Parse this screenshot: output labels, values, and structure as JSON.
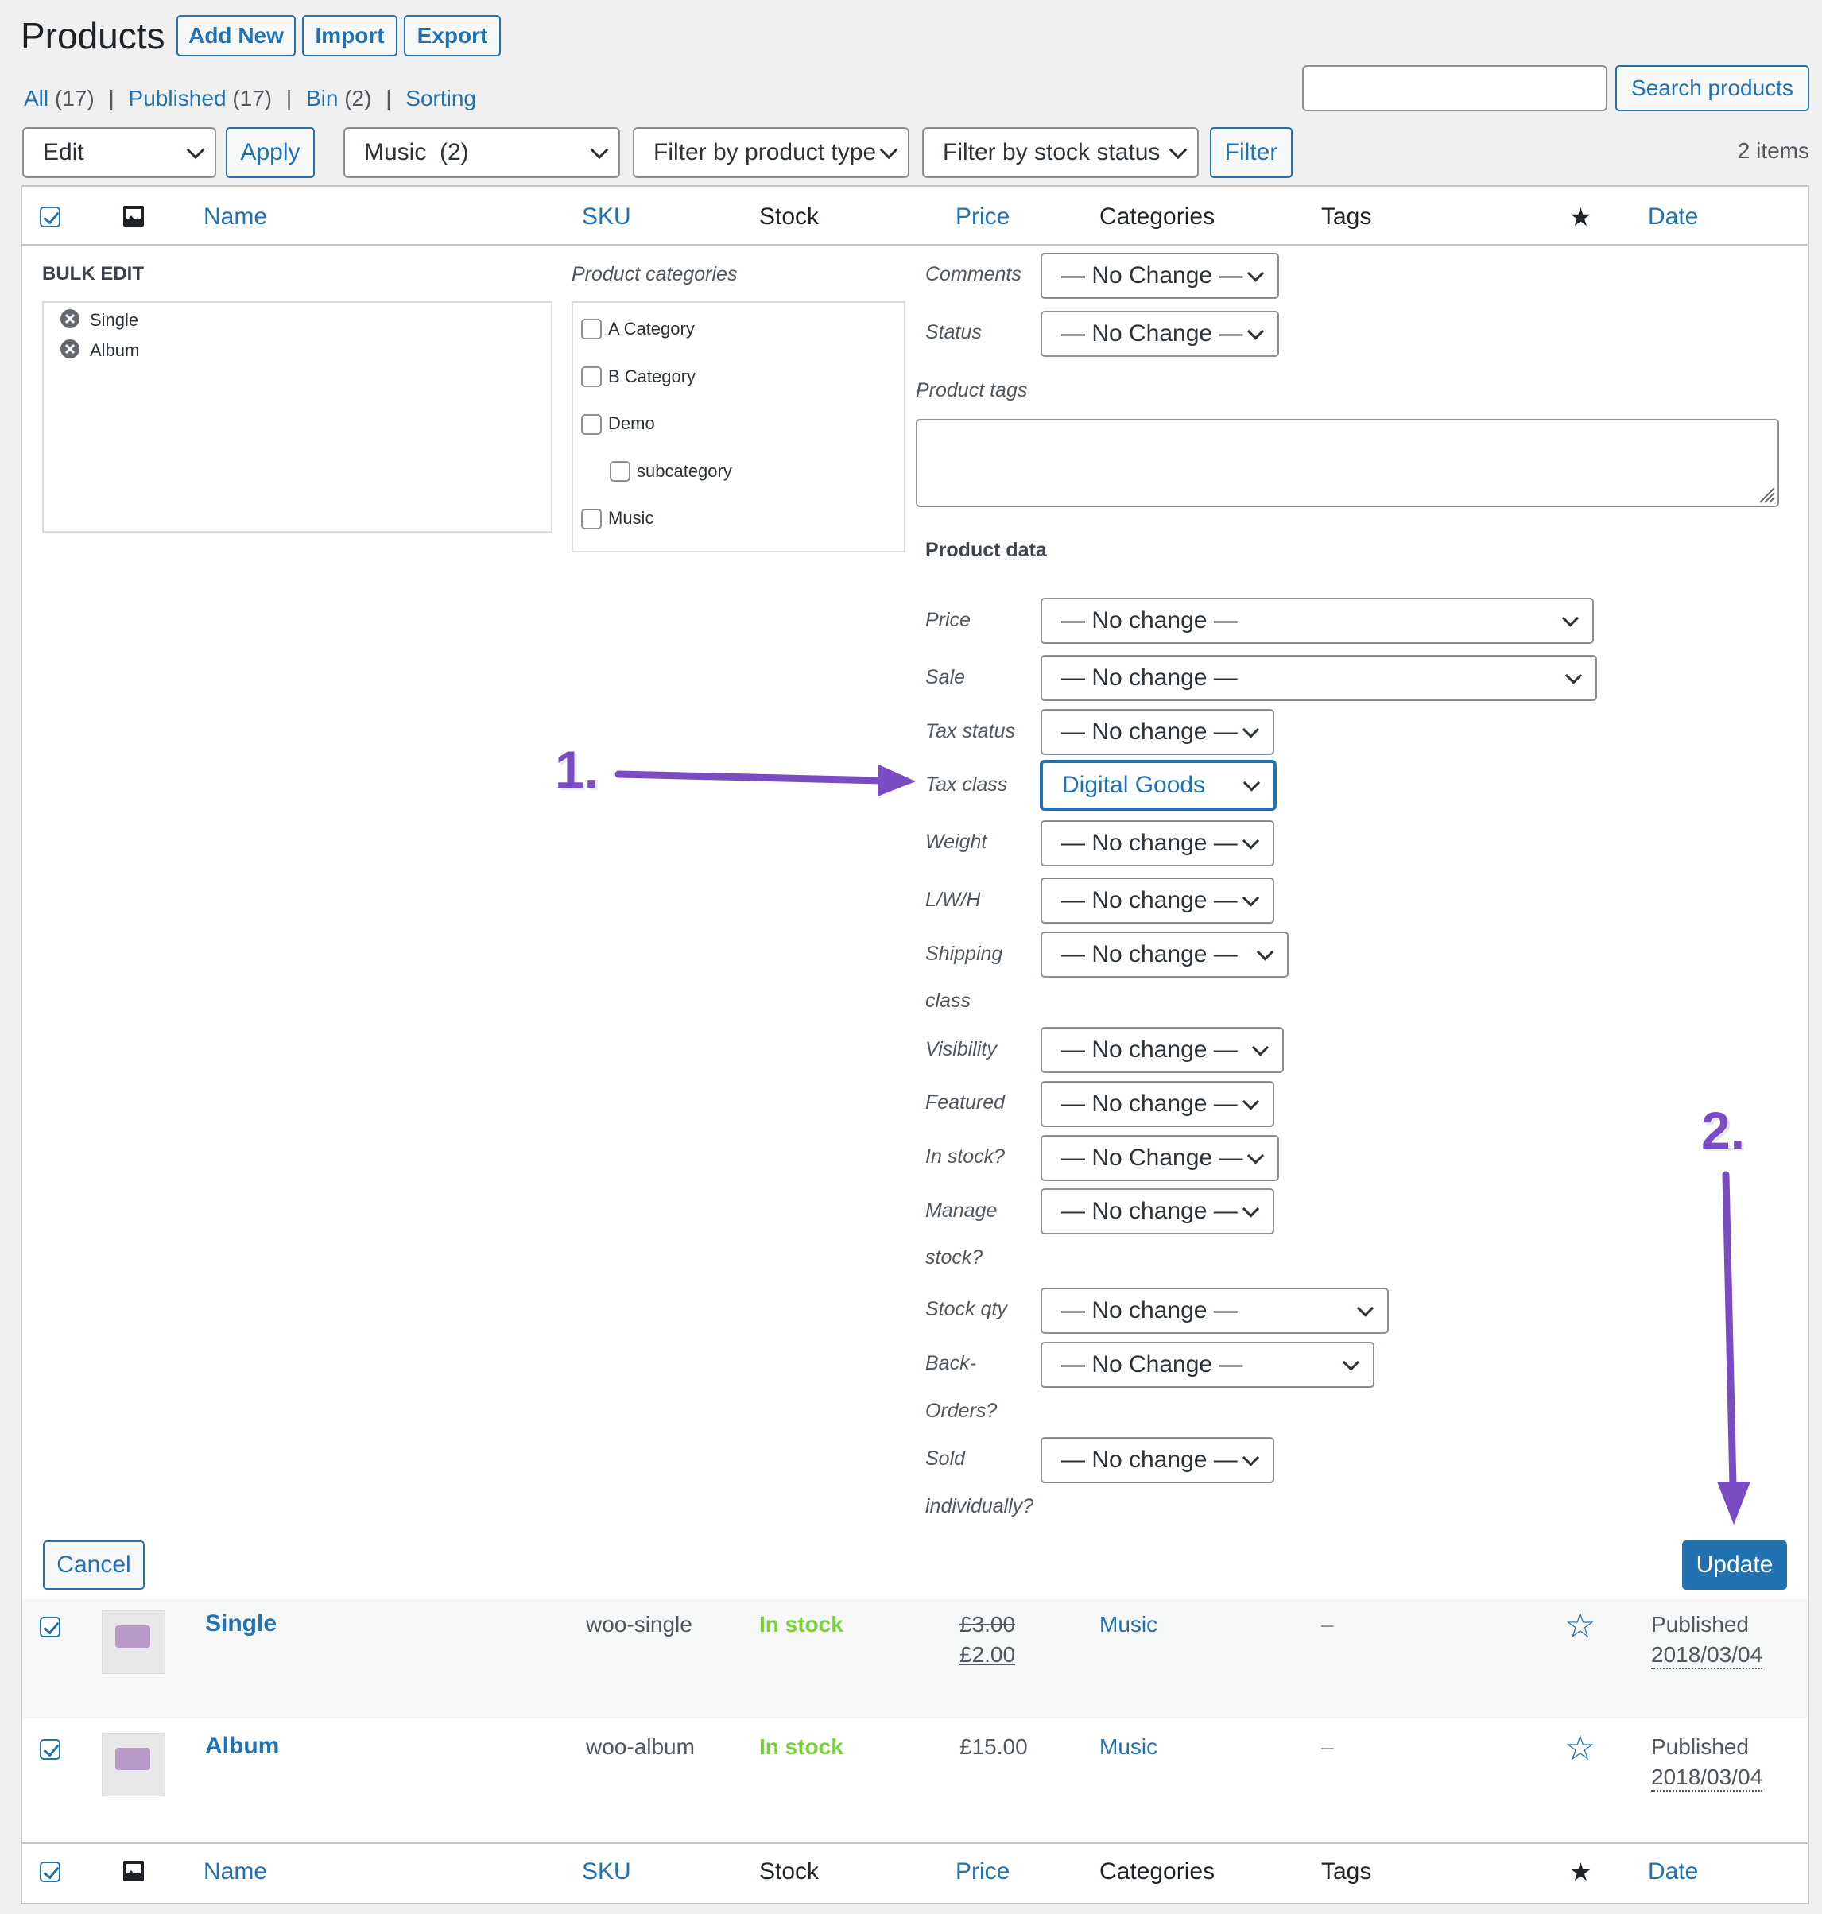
{
  "header": {
    "title": "Products",
    "add_new": "Add New",
    "import": "Import",
    "export": "Export"
  },
  "views": [
    {
      "label": "All",
      "count": "(17)"
    },
    {
      "label": "Published",
      "count": "(17)"
    },
    {
      "label": "Bin",
      "count": "(2)"
    },
    {
      "label": "Sorting",
      "count": ""
    }
  ],
  "separator": "|",
  "search": {
    "value": "",
    "button": "Search products"
  },
  "toolbar": {
    "bulk_action": "Edit",
    "apply": "Apply",
    "category_filter": "Music  (2)",
    "type_filter": "Filter by product type",
    "stock_filter": "Filter by stock status",
    "filter": "Filter",
    "items_count": "2 items"
  },
  "columns": {
    "name": "Name",
    "sku": "SKU",
    "stock": "Stock",
    "price": "Price",
    "categories": "Categories",
    "tags": "Tags",
    "date": "Date"
  },
  "bulk_edit": {
    "title": "BULK EDIT",
    "items": [
      "Single",
      "Album"
    ],
    "categories_label": "Product categories",
    "categories": [
      {
        "label": "A Category",
        "child": false
      },
      {
        "label": "B Category",
        "child": false
      },
      {
        "label": "Demo",
        "child": false
      },
      {
        "label": "subcategory",
        "child": true
      },
      {
        "label": "Music",
        "child": false
      }
    ],
    "comments_label": "Comments",
    "comments_value": "— No Change —",
    "status_label": "Status",
    "status_value": "— No Change —",
    "tags_label": "Product tags",
    "tags_value": "",
    "product_data_label": "Product data",
    "fields": {
      "price": {
        "label": "Price",
        "value": "— No change —"
      },
      "sale": {
        "label": "Sale",
        "value": "— No change —"
      },
      "tax_status": {
        "label": "Tax status",
        "value": "— No change —"
      },
      "tax_class": {
        "label": "Tax class",
        "value": "Digital Goods"
      },
      "weight": {
        "label": "Weight",
        "value": "— No change —"
      },
      "lwh": {
        "label": "L/W/H",
        "value": "— No change —"
      },
      "shipping_1": "Shipping",
      "shipping_2": "class",
      "shipping_value": "— No change —",
      "visibility": {
        "label": "Visibility",
        "value": "— No change —"
      },
      "featured": {
        "label": "Featured",
        "value": "— No change —"
      },
      "in_stock": {
        "label": "In stock?",
        "value": "— No Change —"
      },
      "manage_1": "Manage",
      "manage_2": "stock?",
      "manage_value": "— No change —",
      "stock_qty": {
        "label": "Stock qty",
        "value": "— No change —"
      },
      "backorders_1": "Back-",
      "backorders_2": "Orders?",
      "backorders_value": "— No Change —",
      "sold_1": "Sold",
      "sold_2": "individually?",
      "sold_value": "— No change —"
    },
    "cancel": "Cancel",
    "update": "Update"
  },
  "annotations": {
    "step1": "1.",
    "step2": "2.",
    "color": "#7a4cc4"
  },
  "products": [
    {
      "name": "Single",
      "sku": "woo-single",
      "stock": "In stock",
      "price_regular": "£3.00",
      "price_sale": "£2.00",
      "category": "Music",
      "tags": "–",
      "status": "Published",
      "date": "2018/03/04"
    },
    {
      "name": "Album",
      "sku": "woo-album",
      "stock": "In stock",
      "price_regular": "£15.00",
      "price_sale": "",
      "category": "Music",
      "tags": "–",
      "status": "Published",
      "date": "2018/03/04"
    }
  ],
  "colors": {
    "accent": "#2271b1",
    "in_stock": "#7ad03a",
    "update_bg": "#2271b1"
  }
}
